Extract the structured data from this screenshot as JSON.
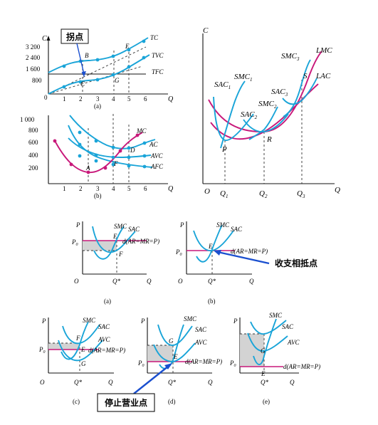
{
  "diagram_a": {
    "ylabel": "C",
    "xlabel": "Q",
    "y_ticks": [
      "3 200",
      "2 400",
      "1 600",
      "800",
      "0"
    ],
    "x_ticks": [
      "1",
      "2",
      "3",
      "4",
      "5",
      "6"
    ],
    "labels": {
      "tc": "TC",
      "tvc": "TVC",
      "tfc": "TFC",
      "b": "B",
      "c": "C",
      "e": "E",
      "g": "G"
    },
    "caption": "(a)",
    "callout": "拐点"
  },
  "diagram_b": {
    "y_ticks": [
      "1 000",
      "800",
      "600",
      "400",
      "200"
    ],
    "x_ticks": [
      "1",
      "2",
      "3",
      "4",
      "5",
      "6"
    ],
    "xlabel": "Q",
    "labels": {
      "mc": "MC",
      "ac": "AC",
      "avc": "AVC",
      "afc": "AFC",
      "a": "A",
      "d": "D",
      "f": "F"
    },
    "caption": "(b)"
  },
  "diagram_lmc": {
    "ylabel": "C",
    "xlabel": "Q",
    "curve_labels": {
      "lmc": "LMC",
      "lac": "LAC"
    },
    "sac1": "SAC",
    "smc1": "SMC",
    "sac2": "SAC",
    "smc2": "SMC",
    "sac3": "SAC",
    "smc3": "SMC",
    "sub1": "1",
    "sub2": "2",
    "sub3": "3",
    "points": {
      "p": "P",
      "r": "R",
      "s": "S"
    },
    "x_ticks": [
      "Q",
      "Q",
      "Q"
    ],
    "origin": "O"
  },
  "firm_panels": {
    "p": "P",
    "p0": "P",
    "p0_sub": "0",
    "o": "O",
    "q": "Q",
    "qstar": "Q*",
    "smc": "SMC",
    "sac": "SAC",
    "avc": "AVC",
    "demand": "d(AR=MR=P)",
    "e": "E",
    "f": "F",
    "g": "G",
    "captions": [
      "(a)",
      "(b)",
      "(c)",
      "(d)",
      "(e)"
    ],
    "callout_breakeven": "收支相抵点",
    "callout_shutdown": "停止营业点"
  }
}
